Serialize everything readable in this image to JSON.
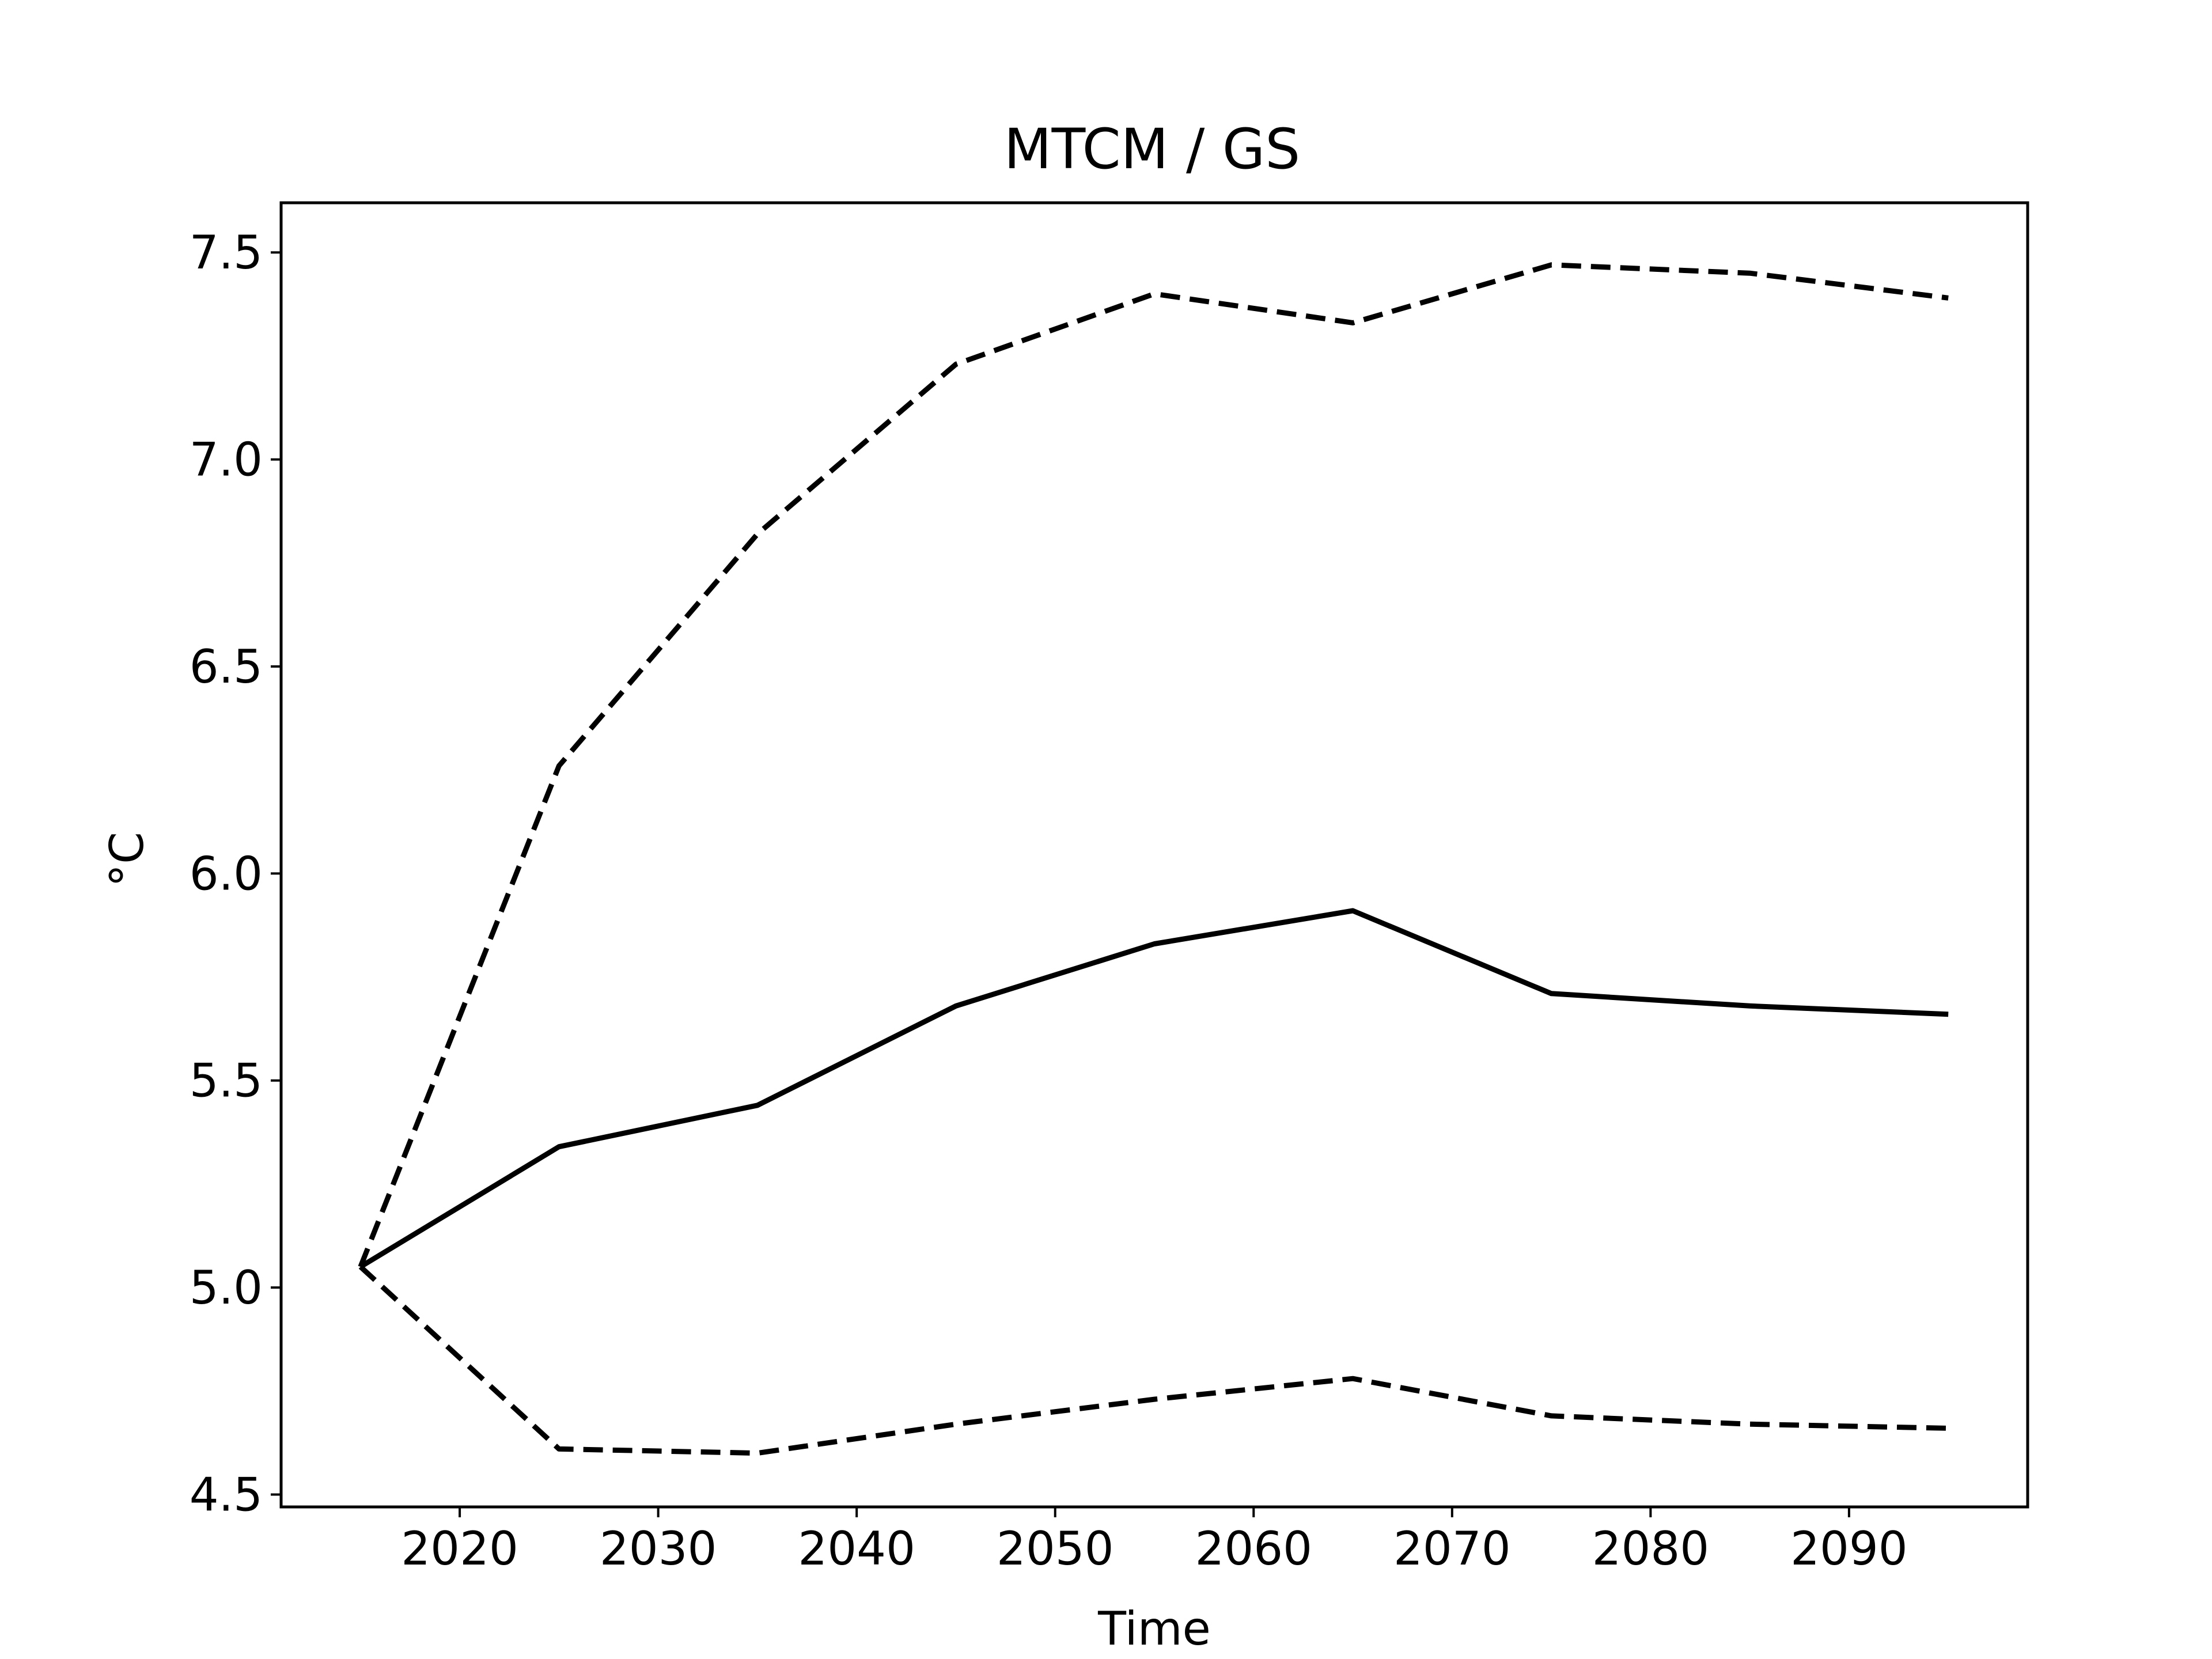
{
  "chart_data": {
    "type": "line",
    "title": "MTCM / GS",
    "xlabel": "Time",
    "ylabel": "°C",
    "xlim": [
      2011,
      2099
    ],
    "ylim": [
      4.47,
      7.62
    ],
    "xticks": [
      2020,
      2030,
      2040,
      2050,
      2060,
      2070,
      2080,
      2090
    ],
    "yticks": [
      4.5,
      5.0,
      5.5,
      6.0,
      6.5,
      7.0,
      7.5
    ],
    "xtick_labels": [
      "2020",
      "2030",
      "2040",
      "2050",
      "2060",
      "2070",
      "2080",
      "2090"
    ],
    "ytick_labels": [
      "4.5",
      "5.0",
      "5.5",
      "6.0",
      "6.5",
      "7.0",
      "7.5"
    ],
    "grid": false,
    "x": [
      2015,
      2025,
      2035,
      2045,
      2055,
      2065,
      2075,
      2085,
      2095
    ],
    "series": [
      {
        "style": "dashed",
        "color": "#000000",
        "values": [
          5.05,
          6.26,
          6.82,
          7.23,
          7.4,
          7.33,
          7.47,
          7.45,
          7.39
        ]
      },
      {
        "style": "solid",
        "color": "#000000",
        "values": [
          5.05,
          5.34,
          5.44,
          5.68,
          5.83,
          5.91,
          5.71,
          5.68,
          5.66
        ]
      },
      {
        "style": "dashed",
        "color": "#000000",
        "values": [
          5.05,
          4.61,
          4.6,
          4.67,
          4.73,
          4.78,
          4.69,
          4.67,
          4.66
        ]
      }
    ]
  }
}
